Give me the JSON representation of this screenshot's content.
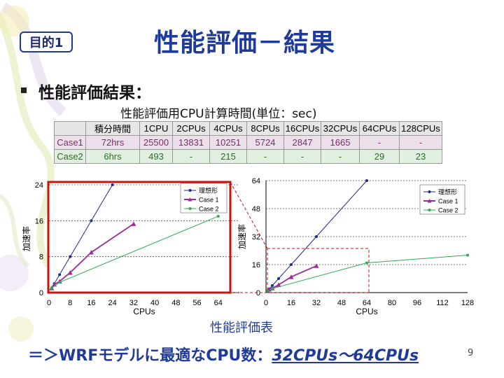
{
  "slide": {
    "badge": "目的1",
    "title": "性能評価－結果",
    "heading": "性能評価結果：",
    "table_caption": "性能評価用CPU計算時間(単位：sec)",
    "figure_caption": "性能評価表",
    "conclusion_prefix": "＝＞WRFモデルに最適なCPU数：",
    "conclusion_highlight": "32CPUs～64CPUs",
    "page_number": "9"
  },
  "table": {
    "headers": [
      "",
      "積分時間",
      "1CPU",
      "2CPUs",
      "4CPUs",
      "8CPUs",
      "16CPUs",
      "32CPUs",
      "64CPUs",
      "128CPUs"
    ],
    "rows": [
      [
        "Case1",
        "72hrs",
        "25500",
        "13831",
        "10251",
        "5724",
        "2847",
        "1665",
        "-",
        "-"
      ],
      [
        "Case2",
        "6hrs",
        "493",
        "-",
        "215",
        "-",
        "-",
        "-",
        "29",
        "23"
      ]
    ]
  },
  "colors": {
    "ideal": "#1f2a8a",
    "case1": "#9b2d96",
    "case2": "#2eaa55",
    "highlight": "#cc1111"
  },
  "chart_data": [
    {
      "type": "line",
      "xlabel": "CPUs",
      "ylabel": "加速率",
      "xlim": [
        0,
        72
      ],
      "ylim": [
        0,
        24
      ],
      "xticks": [
        0,
        8,
        16,
        24,
        32,
        40,
        48,
        56,
        64
      ],
      "yticks": [
        0,
        8,
        16,
        24
      ],
      "legend": "top-right",
      "series": [
        {
          "name": "理想形",
          "color": "#1f2a8a",
          "points": [
            [
              1,
              1
            ],
            [
              2,
              2
            ],
            [
              4,
              4
            ],
            [
              8,
              8
            ],
            [
              16,
              16
            ],
            [
              24,
              24
            ]
          ]
        },
        {
          "name": "Case 1",
          "color": "#9b2d96",
          "points": [
            [
              1,
              1
            ],
            [
              2,
              1.84
            ],
            [
              4,
              2.49
            ],
            [
              8,
              4.45
            ],
            [
              16,
              8.96
            ],
            [
              32,
              15.3
            ]
          ]
        },
        {
          "name": "Case 2",
          "color": "#2eaa55",
          "points": [
            [
              1,
              1
            ],
            [
              4,
              2.29
            ],
            [
              64,
              17
            ]
          ]
        }
      ]
    },
    {
      "type": "line",
      "xlabel": "CPUs",
      "ylabel": "加速率",
      "xlim": [
        0,
        128
      ],
      "ylim": [
        0,
        64
      ],
      "xticks": [
        0,
        16,
        32,
        48,
        64,
        80,
        96,
        112,
        128
      ],
      "yticks": [
        0,
        16,
        32,
        48,
        64
      ],
      "legend": "top-right",
      "series": [
        {
          "name": "理想形",
          "color": "#1f2a8a",
          "points": [
            [
              1,
              1
            ],
            [
              2,
              2
            ],
            [
              4,
              4
            ],
            [
              8,
              8
            ],
            [
              16,
              16
            ],
            [
              32,
              32
            ],
            [
              64,
              64
            ]
          ]
        },
        {
          "name": "Case 1",
          "color": "#9b2d96",
          "points": [
            [
              1,
              1
            ],
            [
              2,
              1.84
            ],
            [
              4,
              2.49
            ],
            [
              8,
              4.45
            ],
            [
              16,
              8.96
            ],
            [
              32,
              15.3
            ]
          ]
        },
        {
          "name": "Case 2",
          "color": "#2eaa55",
          "points": [
            [
              1,
              1
            ],
            [
              4,
              2.29
            ],
            [
              64,
              17
            ],
            [
              128,
              21.4
            ]
          ]
        }
      ]
    }
  ]
}
